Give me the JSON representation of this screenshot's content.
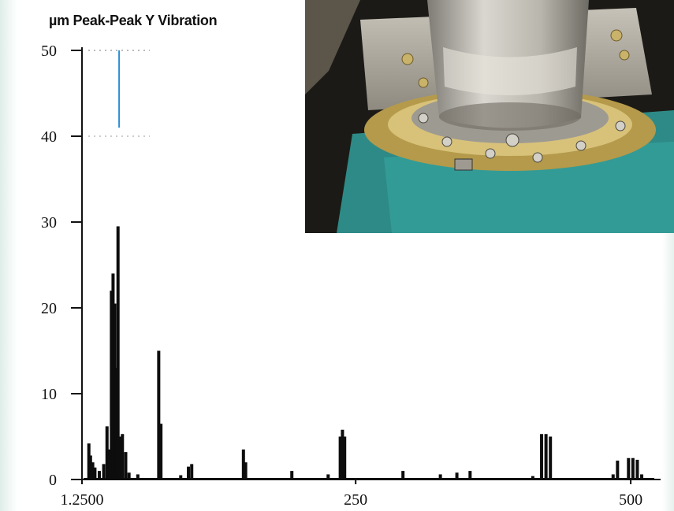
{
  "chart_data": {
    "type": "bar",
    "title": "µm Peak-Peak Y Vibration",
    "xlabel": "",
    "ylabel": "",
    "xlim": [
      1.25,
      520
    ],
    "ylim": [
      0,
      50
    ],
    "yticks": [
      "0",
      "10",
      "20",
      "30",
      "40",
      "50"
    ],
    "xticks": [
      {
        "value": 1.25,
        "label": "1.2500"
      },
      {
        "value": 250,
        "label": "250"
      },
      {
        "value": 500,
        "label": "500"
      }
    ],
    "grid": false,
    "marker_line": {
      "x": 35,
      "color": "#2a8fd6"
    },
    "series": [
      {
        "x": [
          7.5,
          9,
          11,
          13,
          17,
          21,
          24,
          26,
          28,
          29.5,
          31,
          32.5,
          34,
          36,
          38,
          41,
          44,
          52,
          71,
          73,
          91,
          98,
          101,
          148,
          150,
          192,
          225,
          236,
          238,
          240,
          293,
          327,
          342,
          354,
          411,
          419,
          423,
          427,
          484,
          488,
          498,
          502,
          506,
          510
        ],
        "values": [
          4.2,
          2.8,
          2.0,
          1.4,
          1.0,
          1.8,
          6.2,
          3.5,
          22.0,
          24.0,
          20.5,
          13.0,
          29.5,
          5.0,
          5.3,
          3.2,
          0.8,
          0.6,
          15.0,
          6.5,
          0.5,
          1.5,
          1.8,
          3.5,
          2.0,
          1.0,
          0.6,
          5.0,
          5.8,
          5.0,
          1.0,
          0.6,
          0.8,
          1.0,
          0.4,
          5.3,
          5.3,
          5.0,
          0.6,
          2.2,
          2.5,
          2.5,
          2.3,
          0.6
        ]
      }
    ]
  },
  "photo": {
    "icon": "mechanical-seal-photo"
  }
}
